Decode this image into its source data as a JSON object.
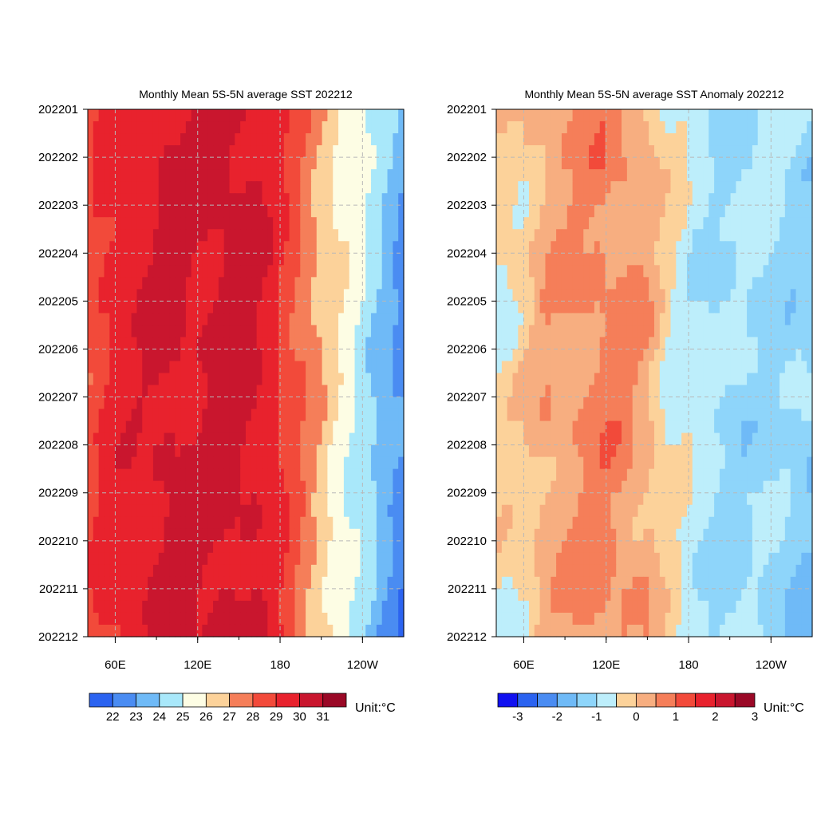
{
  "chart_data": [
    {
      "type": "heatmap",
      "title": "Monthly Mean 5S-5N average SST  202212",
      "y_ticks": [
        "202201",
        "202202",
        "202203",
        "202204",
        "202205",
        "202206",
        "202207",
        "202208",
        "202209",
        "202210",
        "202211",
        "202212"
      ],
      "y_order": "top-to-bottom",
      "x_ticks": [
        {
          "label": "60E",
          "lon": 60
        },
        {
          "label": "120E",
          "lon": 120
        },
        {
          "label": "180",
          "lon": 180
        },
        {
          "label": "120W",
          "lon": 240
        }
      ],
      "xlim_lon": [
        40,
        270
      ],
      "grid": true,
      "colorbar": {
        "labels": [
          "22",
          "23",
          "24",
          "25",
          "26",
          "27",
          "28",
          "29",
          "30",
          "31"
        ],
        "levels": [
          22,
          23,
          24,
          25,
          26,
          27,
          28,
          29,
          30,
          31
        ],
        "colors": [
          "#2b63f0",
          "#4a8cf2",
          "#6fbaf7",
          "#a9e8fa",
          "#fdfde4",
          "#fcd29a",
          "#f57e59",
          "#f24a3a",
          "#e8222d",
          "#c9162e",
          "#9a0826"
        ],
        "unit": "Unit:°C"
      },
      "lon_profile": [
        {
          "lon": 40,
          "value": 28.5
        },
        {
          "lon": 55,
          "value": 29.3
        },
        {
          "lon": 80,
          "value": 29.8
        },
        {
          "lon": 100,
          "value": 30.3
        },
        {
          "lon": 120,
          "value": 30.0
        },
        {
          "lon": 140,
          "value": 30.4
        },
        {
          "lon": 160,
          "value": 30.1
        },
        {
          "lon": 175,
          "value": 29.5
        },
        {
          "lon": 190,
          "value": 28.4
        },
        {
          "lon": 205,
          "value": 27.3
        },
        {
          "lon": 220,
          "value": 26.3
        },
        {
          "lon": 235,
          "value": 25.4
        },
        {
          "lon": 250,
          "value": 24.5
        },
        {
          "lon": 270,
          "value": 23.2
        }
      ]
    },
    {
      "type": "heatmap",
      "title": "Monthly Mean 5S-5N average SST Anomaly 202212",
      "y_ticks": [
        "202201",
        "202202",
        "202203",
        "202204",
        "202205",
        "202206",
        "202207",
        "202208",
        "202209",
        "202210",
        "202211",
        "202212"
      ],
      "y_order": "top-to-bottom",
      "x_ticks": [
        {
          "label": "60E",
          "lon": 60
        },
        {
          "label": "120E",
          "lon": 120
        },
        {
          "label": "180",
          "lon": 180
        },
        {
          "label": "120W",
          "lon": 240
        }
      ],
      "xlim_lon": [
        40,
        270
      ],
      "grid": true,
      "colorbar": {
        "labels": [
          "-3",
          "-2",
          "-1",
          "0",
          "1",
          "2",
          "3"
        ],
        "levels": [
          -3,
          -2.5,
          -2,
          -1.5,
          -1,
          -0.5,
          0,
          0.5,
          1,
          1.5,
          2,
          2.5,
          3
        ],
        "colors": [
          "#1111f0",
          "#2b63f0",
          "#4a8cf2",
          "#6fbaf7",
          "#8ed5fa",
          "#bdeefb",
          "#fcd29a",
          "#f7ae80",
          "#f57e59",
          "#f24a3a",
          "#e8222d",
          "#c9162e",
          "#9a0826"
        ],
        "unit": "Unit:°C"
      },
      "lon_profile": [
        {
          "lon": 40,
          "value": -0.4
        },
        {
          "lon": 60,
          "value": -0.2
        },
        {
          "lon": 75,
          "value": 0.3
        },
        {
          "lon": 100,
          "value": 0.5
        },
        {
          "lon": 115,
          "value": 0.7
        },
        {
          "lon": 130,
          "value": 0.6
        },
        {
          "lon": 150,
          "value": 0.3
        },
        {
          "lon": 165,
          "value": -0.4
        },
        {
          "lon": 185,
          "value": -0.8
        },
        {
          "lon": 210,
          "value": -1.0
        },
        {
          "lon": 240,
          "value": -0.9
        },
        {
          "lon": 270,
          "value": -1.1
        }
      ]
    }
  ]
}
